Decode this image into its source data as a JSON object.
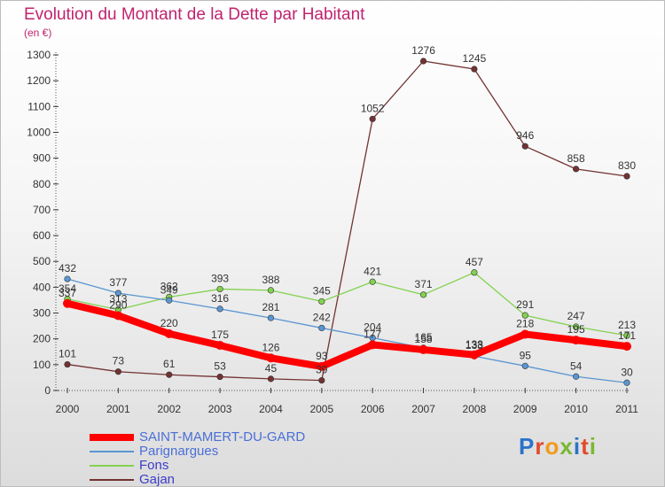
{
  "title": "Evolution du Montant de la Dette par Habitant",
  "subtitle": "(en €)",
  "logo": {
    "text": "Proxiti",
    "colors": [
      "#2b73c9",
      "#e04a2a",
      "#f39a1b",
      "#78b832",
      "#2b73c9",
      "#e04a2a",
      "#78b832"
    ]
  },
  "chart_data": {
    "type": "line",
    "title": "Evolution du Montant de la Dette par Habitant",
    "xlabel": "",
    "ylabel": "(en €)",
    "x": [
      "2000",
      "2001",
      "2002",
      "2003",
      "2004",
      "2005",
      "2006",
      "2007",
      "2008",
      "2009",
      "2010",
      "2011"
    ],
    "ylim": [
      0,
      1300
    ],
    "yticks": [
      0,
      100,
      200,
      300,
      400,
      500,
      600,
      700,
      800,
      900,
      1000,
      1100,
      1200,
      1300
    ],
    "grid": false,
    "legend_position": "bottom-left",
    "series": [
      {
        "name": "SAINT-MAMERT-DU-GARD",
        "color": "#ff0000",
        "values": [
          337,
          290,
          220,
          175,
          126,
          93,
          177,
          158,
          138,
          218,
          195,
          171
        ],
        "labels": [
          "337",
          "290",
          "220",
          "175",
          "126",
          "93",
          "177",
          "158",
          "138",
          "218",
          "195",
          "171"
        ]
      },
      {
        "name": "Parignargues",
        "color": "#5a96d2",
        "values": [
          432,
          377,
          349,
          316,
          281,
          242,
          204,
          165,
          133,
          95,
          54,
          30
        ],
        "labels": [
          "432",
          "377",
          "349",
          "316",
          "281",
          "242",
          "204",
          "165",
          "133",
          "95",
          "54",
          "30"
        ]
      },
      {
        "name": "Fons",
        "color": "#82d250",
        "values": [
          354,
          313,
          362,
          393,
          388,
          345,
          421,
          371,
          457,
          291,
          247,
          213
        ],
        "labels": [
          "354",
          "313",
          "362",
          "393",
          "388",
          "345",
          "421",
          "371",
          "457",
          "291",
          "247",
          "213"
        ]
      },
      {
        "name": "Gajan",
        "color": "#733232",
        "values": [
          101,
          73,
          61,
          53,
          45,
          39,
          1052,
          1276,
          1245,
          946,
          858,
          830
        ],
        "labels": [
          "101",
          "73",
          "61",
          "53",
          "45",
          "39",
          "1052",
          "1276",
          "1245",
          "946",
          "858",
          "830"
        ]
      }
    ]
  }
}
